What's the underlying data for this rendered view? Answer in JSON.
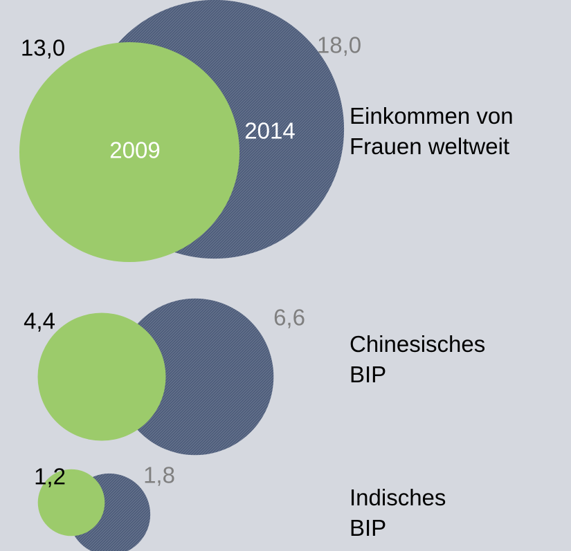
{
  "chart_data": {
    "type": "bubble",
    "categories": [
      "Einkommen von\nFrauen weltweit",
      "Chinesisches\nBIP",
      "Indisches\nBIP"
    ],
    "series": [
      {
        "name": "2009",
        "color": "#9ccb6b",
        "values": [
          13,
          4.4,
          1.2
        ],
        "value_labels": [
          "13,0",
          "4,4",
          "1,2"
        ]
      },
      {
        "name": "2014",
        "color": "#4d5c7a",
        "values": [
          18,
          6.6,
          1.8
        ],
        "value_labels": [
          "18,0",
          "6,6",
          "1,8"
        ]
      }
    ]
  }
}
